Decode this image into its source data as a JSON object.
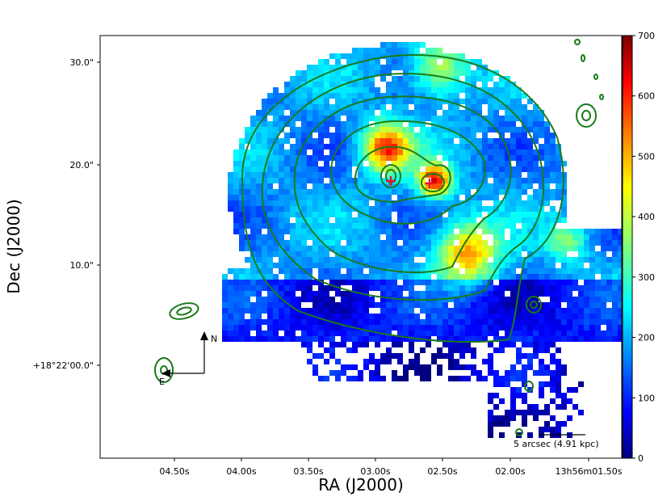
{
  "chart_data": {
    "type": "heatmap",
    "xlabel": "RA (J2000)",
    "ylabel": "Dec (J2000)",
    "x_ticks": [
      "04.50s",
      "04.00s",
      "03.50s",
      "03.00s",
      "02.50s",
      "02.00s",
      "13h56m01.50s"
    ],
    "y_ticks": [
      "30.0\"",
      "20.0\"",
      "10.0\"",
      "+18°22'00.0\""
    ],
    "colorbar": {
      "range": [
        0,
        700
      ],
      "ticks": [
        "0",
        "100",
        "200",
        "300",
        "400",
        "500",
        "600",
        "700"
      ],
      "colormap": "jet"
    },
    "compass": {
      "north": "N",
      "east": "E"
    },
    "scalebar": "5 arcsec (4.91 kpc)",
    "markers": [
      {
        "type": "cross",
        "color": "#e8102a",
        "ra": "02.95s",
        "dec": "18.5\""
      },
      {
        "type": "cross",
        "color": "#e8102a",
        "ra": "02.65s",
        "dec": "18.2\""
      }
    ],
    "contours": {
      "color": "#1a7a1a",
      "count": 7
    },
    "grid": false
  }
}
